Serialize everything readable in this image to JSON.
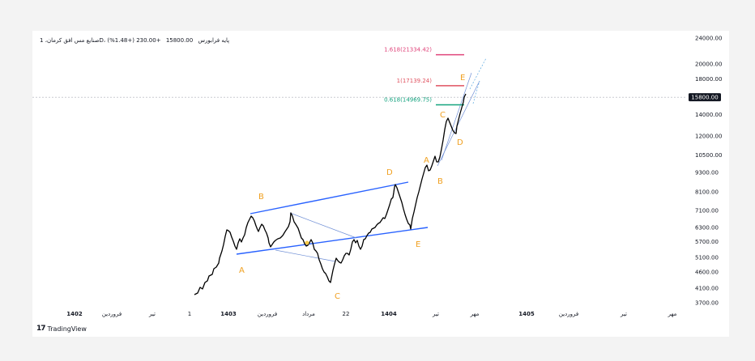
{
  "header": {
    "symbol": "صنایع مس افق کرمان، 1D، پایه فرابورس",
    "price": "15800.00",
    "change": "+230.00 (+1.48%)"
  },
  "brand": {
    "logo": "17",
    "name": "TradingView"
  },
  "chart_data": {
    "type": "line",
    "y_axis_labels": [
      "24000.00",
      "20000.00",
      "18000.00",
      "15800.00",
      "14000.00",
      "12000.00",
      "10500.00",
      "9300.00",
      "8100.00",
      "7100.00",
      "6300.00",
      "5700.00",
      "5100.00",
      "4600.00",
      "4100.00",
      "3700.00"
    ],
    "y_scale": "log",
    "ylim": [
      3500,
      25000
    ],
    "x_axis_labels": [
      "1402",
      "فروردین",
      "تیر",
      "1",
      "1403",
      "فروردین",
      "مرداد",
      "22",
      "1404",
      "تیر",
      "مهر",
      "1405",
      "فروردین",
      "تیر",
      "مهر"
    ],
    "current_price": 15800,
    "fib_levels": [
      {
        "label": "1.618(21334.42)",
        "value": 21334.42,
        "color": "#e0457b"
      },
      {
        "label": "1(17139.24)",
        "value": 17139.24,
        "color": "#e05260"
      },
      {
        "label": "0.618(14969.75)",
        "value": 14969.75,
        "color": "#14a37f"
      }
    ],
    "wave_labels": [
      "A",
      "B",
      "C",
      "D",
      "E",
      "A",
      "B",
      "C",
      "D",
      "E"
    ]
  }
}
